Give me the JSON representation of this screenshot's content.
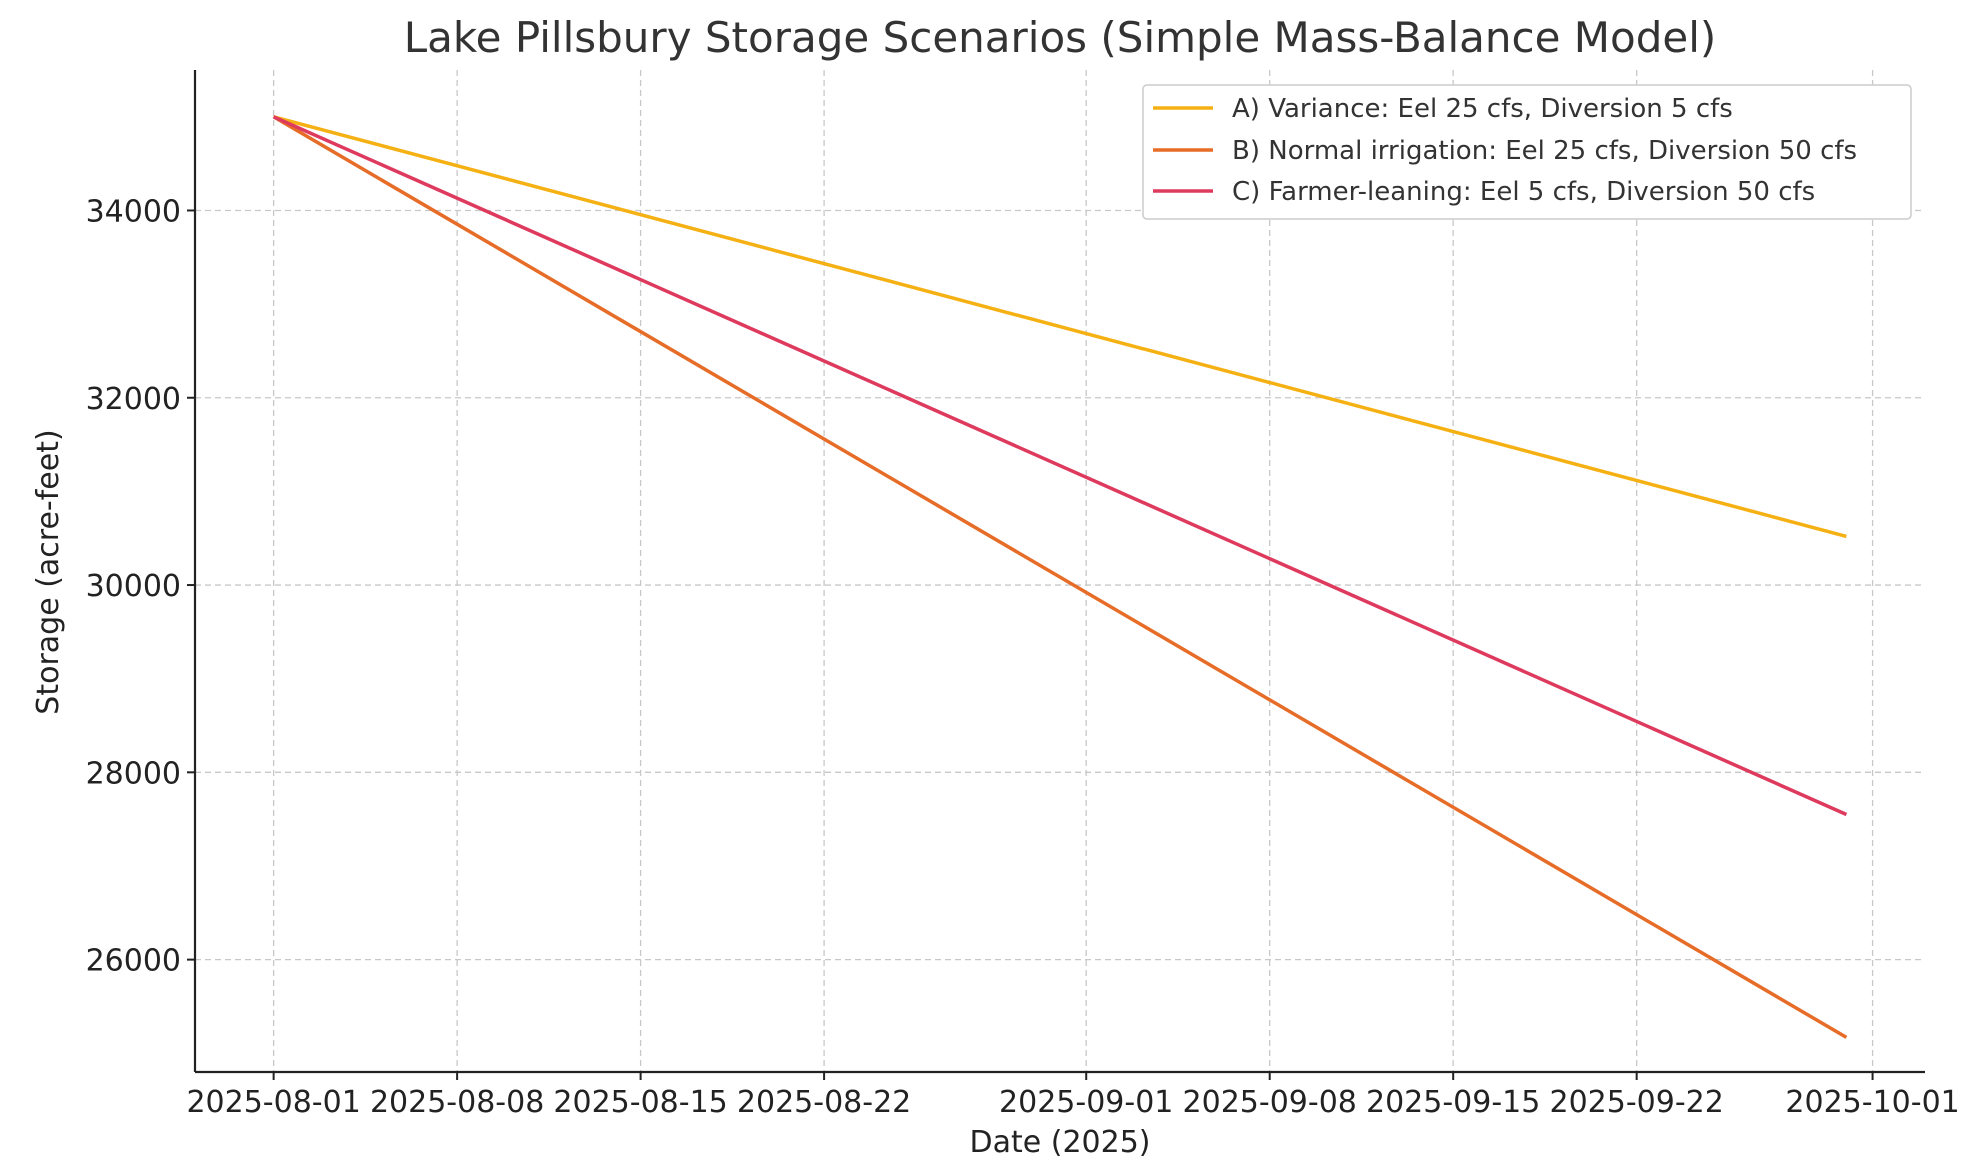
{
  "chart_data": {
    "type": "line",
    "title": "Lake Pillsbury Storage Scenarios (Simple Mass-Balance Model)",
    "xlabel": "Date (2025)",
    "ylabel": "Storage (acre-feet)",
    "x_tick_labels": [
      "2025-08-01",
      "2025-08-08",
      "2025-08-15",
      "2025-08-22",
      "2025-09-01",
      "2025-09-08",
      "2025-09-15",
      "2025-09-22",
      "2025-10-01"
    ],
    "y_ticks": [
      26000,
      28000,
      30000,
      32000,
      34000
    ],
    "xlim": [
      "2025-07-29",
      "2025-10-03"
    ],
    "ylim": [
      24800,
      35500
    ],
    "grid": true,
    "legend_position": "top-right",
    "x": [
      "2025-08-01",
      "2025-09-30"
    ],
    "series": [
      {
        "name": "A) Variance: Eel 25 cfs, Diversion 5 cfs",
        "color": "#F5B013",
        "values": [
          35000,
          30520
        ]
      },
      {
        "name": "B) Normal irrigation: Eel 25 cfs, Diversion 50 cfs",
        "color": "#E66C27",
        "values": [
          35000,
          25170
        ]
      },
      {
        "name": "C) Farmer-leaning: Eel 5 cfs, Diversion 50 cfs",
        "color": "#DE3A5E",
        "values": [
          35000,
          27550
        ]
      }
    ]
  }
}
